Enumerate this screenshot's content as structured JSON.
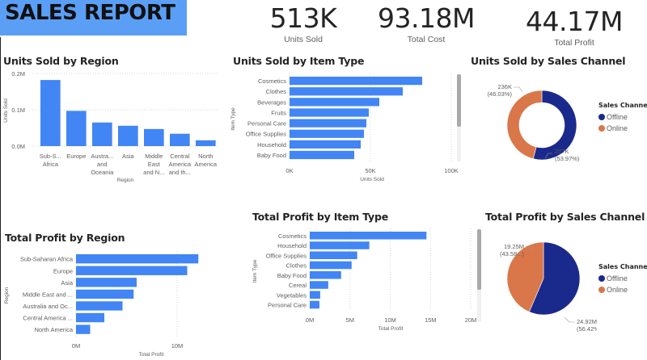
{
  "header": {
    "title": "SALES REPORT"
  },
  "kpis": [
    {
      "value": "513K",
      "label": "Units Sold"
    },
    {
      "value": "93.18M",
      "label": "Total Cost"
    },
    {
      "value": "44.17M",
      "label": "Total Profit"
    }
  ],
  "colors": {
    "bar": "#4285f4",
    "offline": "#1a2a8c",
    "online": "#d9774a",
    "banner": "#5b9ef6"
  },
  "chart_data": [
    {
      "id": "units-by-region",
      "type": "bar",
      "orientation": "vertical",
      "title": "Units Sold by Region",
      "xlabel": "Region",
      "ylabel": "Units Sold",
      "categories": [
        "Sub-Saharan Africa",
        "Europe",
        "Australia and Oceania",
        "Asia",
        "Middle East and North Africa",
        "Central America and the Caribbean",
        "North America"
      ],
      "category_labels": [
        [
          "Sub-S...",
          "Africa"
        ],
        [
          "Europe"
        ],
        [
          "Austra...",
          "and",
          "Oceania"
        ],
        [
          "Asia"
        ],
        [
          "Middle",
          "East",
          "and N..."
        ],
        [
          "Central",
          "America",
          "and th..."
        ],
        [
          "North",
          "America"
        ]
      ],
      "values": [
        182000,
        97000,
        65000,
        56000,
        47000,
        34000,
        16000
      ],
      "ylim": [
        0,
        200000
      ],
      "ticks": [
        0,
        100000,
        200000
      ],
      "tick_labels": [
        "0.0M",
        "0.1M",
        "0.2M"
      ],
      "grid": true
    },
    {
      "id": "units-by-item",
      "type": "bar",
      "orientation": "horizontal",
      "title": "Units Sold by Item Type",
      "xlabel": "Units Sold",
      "ylabel": "Item Type",
      "categories": [
        "Cosmetics",
        "Clothes",
        "Beverages",
        "Fruits",
        "Personal Care",
        "Office Supplies",
        "Household",
        "Baby Food"
      ],
      "values": [
        82000,
        70000,
        55500,
        49000,
        47500,
        46000,
        44000,
        40000
      ],
      "xlim": [
        0,
        100000
      ],
      "ticks": [
        0,
        50000,
        100000
      ],
      "tick_labels": [
        "0K",
        "50K",
        "100K"
      ],
      "grid": true,
      "scroll_fraction": 0.6
    },
    {
      "id": "units-by-channel",
      "type": "pie",
      "variant": "donut",
      "title": "Units Sold by Sales Channel",
      "legend_title": "Sales Channel",
      "legend_position": "right",
      "slices": [
        {
          "name": "Offline",
          "value": 277000,
          "label": "277K",
          "pct_label": "(53.97%)"
        },
        {
          "name": "Online",
          "value": 236000,
          "label": "236K",
          "pct_label": "(46.03%)"
        }
      ]
    },
    {
      "id": "profit-by-region",
      "type": "bar",
      "orientation": "horizontal",
      "title": "Total Profit by Region",
      "xlabel": "Total Profit",
      "ylabel": "Region",
      "categories": [
        "Sub-Saharan Africa",
        "Europe",
        "Asia",
        "Middle East and ...",
        "Australia and Oc...",
        "Central America ...",
        "North America"
      ],
      "values": [
        12100000,
        11000000,
        6000000,
        5700000,
        4600000,
        2800000,
        1400000
      ],
      "xlim": [
        0,
        13000000
      ],
      "ticks": [
        0,
        10000000
      ],
      "tick_labels": [
        "0M",
        "10M"
      ],
      "grid": true
    },
    {
      "id": "profit-by-item",
      "type": "bar",
      "orientation": "horizontal",
      "title": "Total Profit by Item Type",
      "xlabel": "Total Profit",
      "ylabel": "Item Type",
      "categories": [
        "Cosmetics",
        "Household",
        "Office Supplies",
        "Clothes",
        "Baby Food",
        "Cereal",
        "Vegetables",
        "Personal Care"
      ],
      "values": [
        14500000,
        7400000,
        5900000,
        5200000,
        3900000,
        2300000,
        1300000,
        1200000
      ],
      "xlim": [
        0,
        20000000
      ],
      "ticks": [
        0,
        5000000,
        10000000,
        15000000,
        20000000
      ],
      "tick_labels": [
        "0M",
        "5M",
        "10M",
        "15M",
        "20M"
      ],
      "grid": true,
      "scroll_fraction": 0.65
    },
    {
      "id": "profit-by-channel",
      "type": "pie",
      "variant": "pie",
      "title": "Total Profit by Sales Channel",
      "legend_title": "Sales Channel",
      "legend_position": "right",
      "slices": [
        {
          "name": "Offline",
          "value": 24920000,
          "label": "24.92M",
          "pct_label": "(56.42%)"
        },
        {
          "name": "Online",
          "value": 19250000,
          "label": "19.25M",
          "pct_label": "(43.58...)"
        }
      ]
    }
  ]
}
